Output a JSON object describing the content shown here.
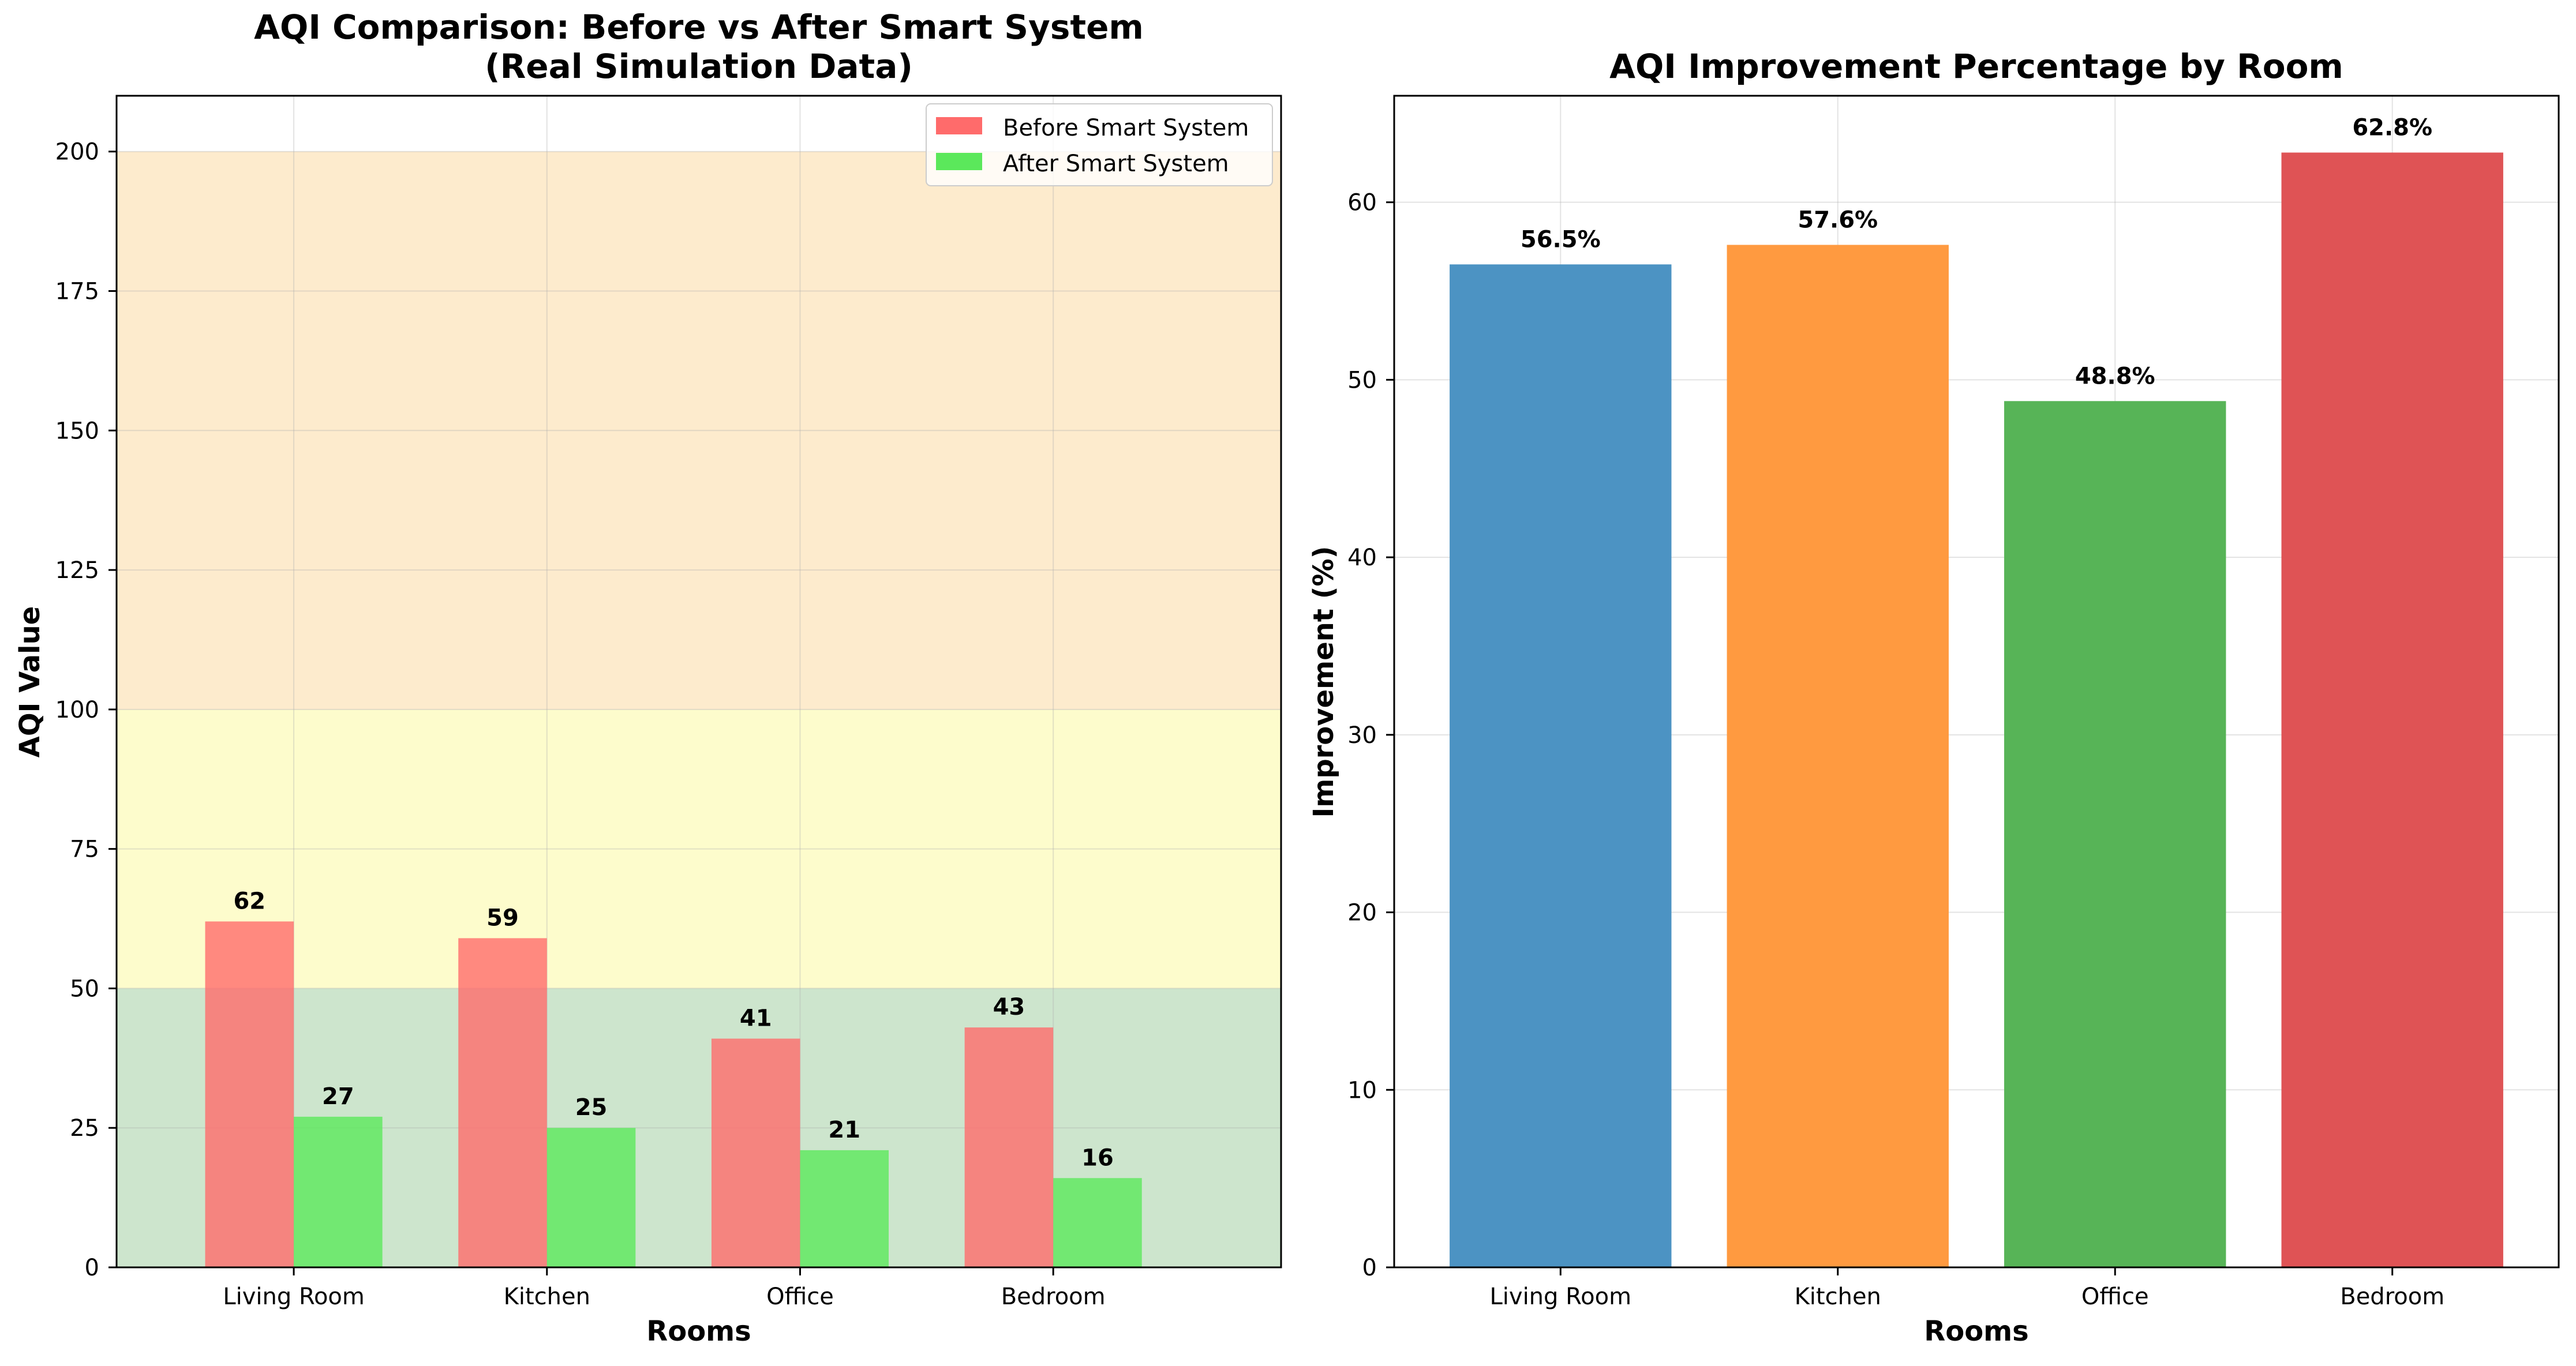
{
  "chart_data": [
    {
      "type": "bar",
      "title": "AQI Comparison: Before vs After Smart System",
      "subtitle": "(Real Simulation Data)",
      "xlabel": "Rooms",
      "ylabel": "AQI Value",
      "categories": [
        "Living Room",
        "Kitchen",
        "Office",
        "Bedroom"
      ],
      "series": [
        {
          "name": "Before Smart System",
          "values": [
            62,
            59,
            41,
            43
          ],
          "color": "#ff6b6b"
        },
        {
          "name": "After Smart System",
          "values": [
            27,
            25,
            21,
            16
          ],
          "color": "#5be85b"
        }
      ],
      "value_labels": [
        [
          "62",
          "59",
          "41",
          "43"
        ],
        [
          "27",
          "25",
          "21",
          "16"
        ]
      ],
      "ylim": [
        0,
        210
      ],
      "yticks": [
        0,
        25,
        50,
        75,
        100,
        125,
        150,
        175,
        200
      ],
      "ytick_labels": [
        "0",
        "25",
        "50",
        "75",
        "100",
        "125",
        "150",
        "175",
        "200"
      ],
      "bands": [
        {
          "from": 0,
          "to": 50,
          "color": "#cde5cd"
        },
        {
          "from": 50,
          "to": 100,
          "color": "#fdfccc"
        },
        {
          "from": 100,
          "to": 200,
          "color": "#fdebcd"
        }
      ],
      "grid": true,
      "legend_position": "upper right"
    },
    {
      "type": "bar",
      "title": "AQI Improvement Percentage by Room",
      "xlabel": "Rooms",
      "ylabel": "Improvement (%)",
      "categories": [
        "Living Room",
        "Kitchen",
        "Office",
        "Bedroom"
      ],
      "values": [
        56.5,
        57.6,
        48.8,
        62.8
      ],
      "value_labels": [
        "56.5%",
        "57.6%",
        "48.8%",
        "62.8%"
      ],
      "colors": [
        "#4c93c3",
        "#ff9a40",
        "#57b457",
        "#df5355"
      ],
      "ylim": [
        0,
        66
      ],
      "yticks": [
        0,
        10,
        20,
        30,
        40,
        50,
        60
      ],
      "ytick_labels": [
        "0",
        "10",
        "20",
        "30",
        "40",
        "50",
        "60"
      ],
      "grid": true
    }
  ]
}
